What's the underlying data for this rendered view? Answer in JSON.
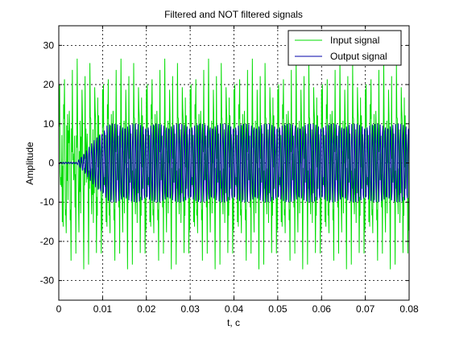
{
  "chart_data": {
    "type": "line",
    "title": "Filtered and NOT filtered signals",
    "xlabel": "t, c",
    "ylabel": "Amplitude",
    "xlim": [
      0,
      0.08
    ],
    "ylim": [
      -35,
      35
    ],
    "xticks": [
      "0",
      "0.01",
      "0.02",
      "0.03",
      "0.04",
      "0.05",
      "0.06",
      "0.07",
      "0.08"
    ],
    "xtick_values": [
      0,
      0.01,
      0.02,
      0.03,
      0.04,
      0.05,
      0.06,
      0.07,
      0.08
    ],
    "yticks": [
      "-30",
      "-20",
      "-10",
      "0",
      "10",
      "20",
      "30"
    ],
    "ytick_values": [
      -30,
      -20,
      -10,
      0,
      10,
      20,
      30
    ],
    "grid": true,
    "grid_style": "dotted",
    "legend_position": "top-right",
    "series": [
      {
        "name": "Input signal",
        "color": "#00dd00",
        "description_params": {
          "components": [
            {
              "amplitude": 10,
              "frequency_hz": 1000
            },
            {
              "amplitude": 10,
              "frequency_hz": 4500
            },
            {
              "amplitude": 10,
              "frequency_hz": 8300
            }
          ],
          "sample_step": 0.0001
        }
      },
      {
        "name": "Output signal",
        "color": "#0000aa",
        "description_params": {
          "amplitude": 10,
          "frequency_hz": 1000,
          "rise_start": 0.004,
          "rise_end": 0.011,
          "sample_step": 0.0001
        }
      }
    ]
  }
}
